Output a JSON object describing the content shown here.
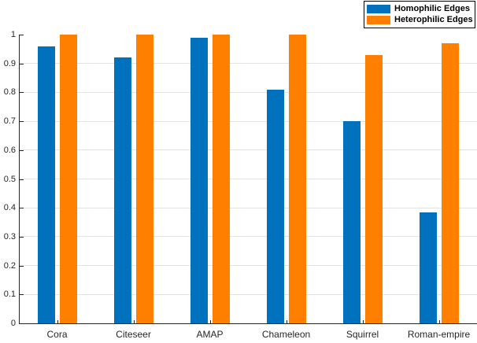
{
  "chart_data": {
    "type": "bar",
    "title": "",
    "xlabel": "",
    "ylabel": "",
    "categories": [
      "Cora",
      "Citeseer",
      "AMAP",
      "Chameleon",
      "Squirrel",
      "Roman-empire"
    ],
    "series": [
      {
        "name": "Homophilic Edges",
        "color": "#0072BD",
        "values": [
          0.96,
          0.92,
          0.99,
          0.81,
          0.7,
          0.385
        ]
      },
      {
        "name": "Heterophilic Edges",
        "color": "#FF8000",
        "values": [
          1.0,
          1.0,
          1.0,
          1.0,
          0.93,
          0.97
        ]
      }
    ],
    "ylim": [
      0,
      1
    ],
    "yticks": [
      0,
      0.1,
      0.2,
      0.3,
      0.4,
      0.5,
      0.6,
      0.7,
      0.8,
      0.9,
      1
    ],
    "ytick_labels": [
      "0",
      "0.1",
      "0.2",
      "0.3",
      "0.4",
      "0.5",
      "0.6",
      "0.7",
      "0.8",
      "0.9",
      "1"
    ],
    "grid": "horizontal-only",
    "legend_position": "top-right"
  },
  "colors": {
    "axis": "#262626",
    "grid": "#e3e3e3",
    "background": "#ffffff",
    "legend_border": "#000000"
  }
}
